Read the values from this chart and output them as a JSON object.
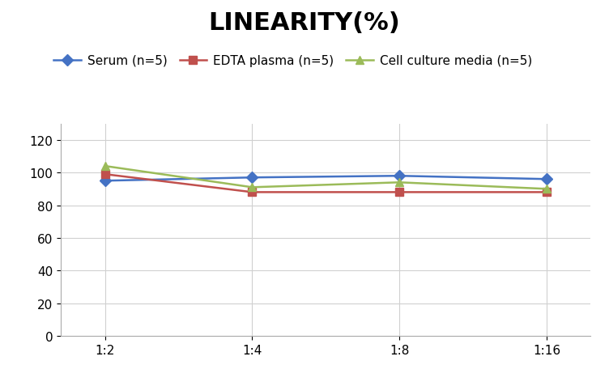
{
  "title": "LINEARITY(%)",
  "x_labels": [
    "1:2",
    "1:4",
    "1:8",
    "1:16"
  ],
  "x_positions": [
    0,
    1,
    2,
    3
  ],
  "series": [
    {
      "label": "Serum (n=5)",
      "values": [
        95,
        97,
        98,
        96
      ],
      "color": "#4472C4",
      "marker": "D",
      "marker_color": "#4472C4"
    },
    {
      "label": "EDTA plasma (n=5)",
      "values": [
        99,
        88,
        88,
        88
      ],
      "color": "#C0504D",
      "marker": "s",
      "marker_color": "#C0504D"
    },
    {
      "label": "Cell culture media (n=5)",
      "values": [
        104,
        91,
        94,
        90
      ],
      "color": "#9BBB59",
      "marker": "^",
      "marker_color": "#9BBB59"
    }
  ],
  "ylim": [
    0,
    130
  ],
  "yticks": [
    0,
    20,
    40,
    60,
    80,
    100,
    120
  ],
  "title_fontsize": 22,
  "legend_fontsize": 11,
  "tick_fontsize": 11,
  "background_color": "#ffffff",
  "grid_color": "#d0d0d0"
}
